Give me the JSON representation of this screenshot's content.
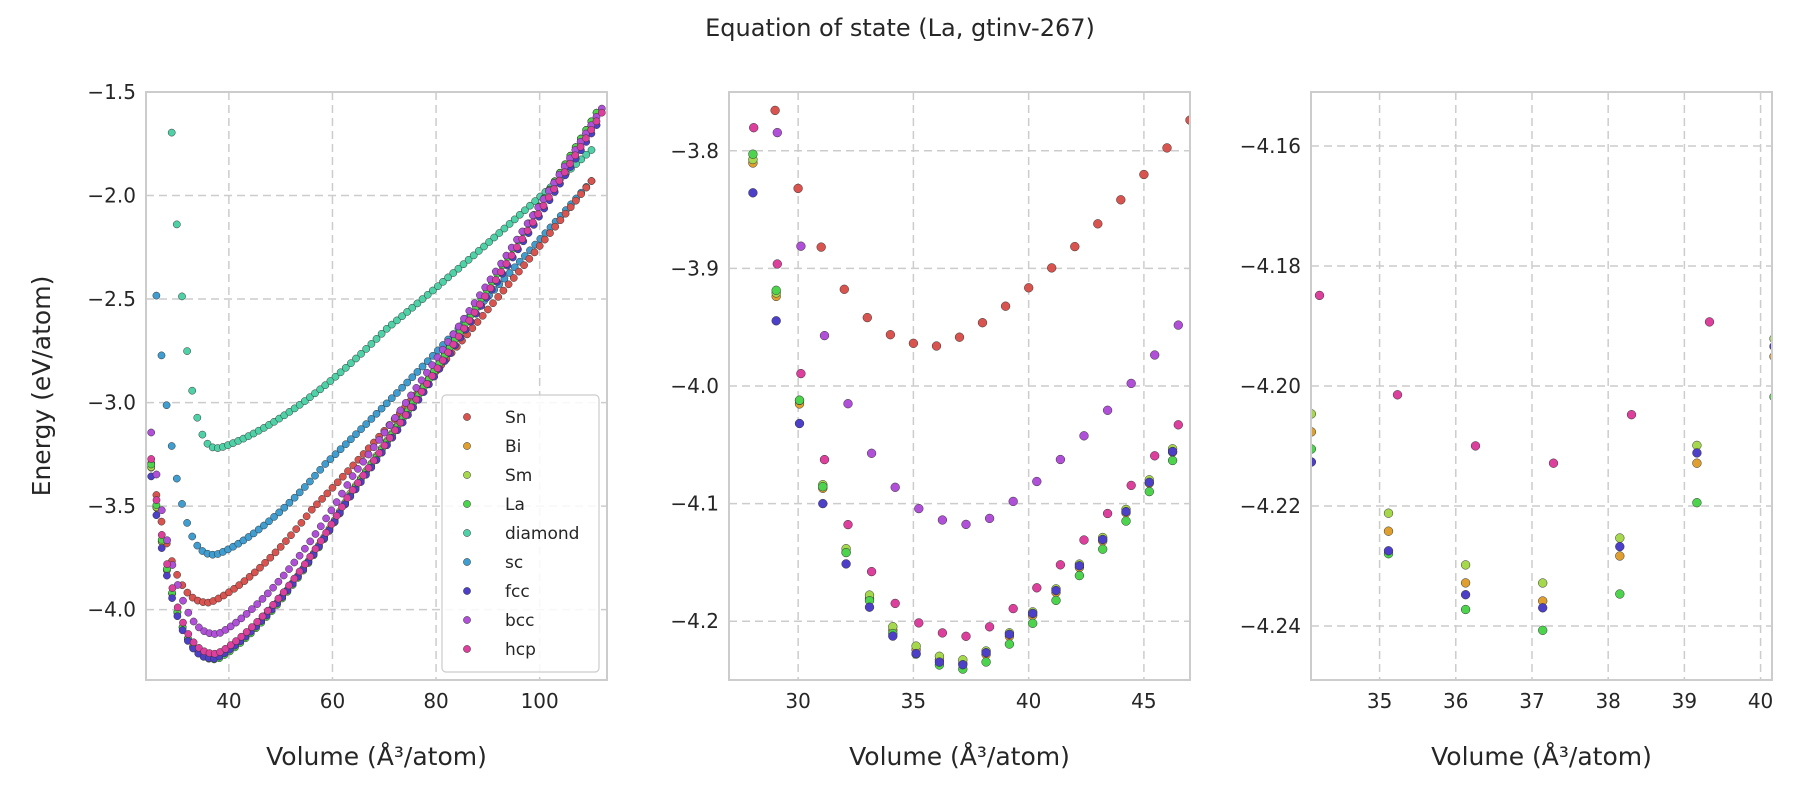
{
  "figure": {
    "title": "Equation of state (La, gtinv-267)"
  },
  "colors": {
    "Sn": "#d9534f",
    "Bi": "#e0a030",
    "Sm": "#a6d84c",
    "La": "#4cd44c",
    "diamond": "#4fd1a8",
    "sc": "#3f9dd0",
    "fcc": "#4c3fc8",
    "bcc": "#b04fd8",
    "hcp": "#dd3f9c"
  },
  "chart_data": [
    {
      "type": "scatter",
      "title": "",
      "xlabel": "Volume (Å³/atom)",
      "ylabel": "Energy (eV/atom)",
      "xlim": [
        24,
        113
      ],
      "ylim": [
        -4.34,
        -1.5
      ],
      "xticks": [
        40,
        60,
        80,
        100
      ],
      "yticks": [
        -4.0,
        -3.5,
        -3.0,
        -2.5,
        -2.0,
        -1.5
      ],
      "grid": true,
      "legend": {
        "position": "bottom-right",
        "entries": [
          "Sn",
          "Bi",
          "Sm",
          "La",
          "diamond",
          "sc",
          "fcc",
          "bcc",
          "hcp"
        ]
      },
      "series": [
        {
          "name": "Sn",
          "x_range": [
            25,
            110
          ],
          "v0": 36.2,
          "e0": -3.966,
          "curvature": 0.00115,
          "e_max": -1.93
        },
        {
          "name": "Bi",
          "x_range": [
            25,
            111
          ],
          "v0": 37.5,
          "e0": -4.236,
          "curvature": 0.00118,
          "e_max": -1.6
        },
        {
          "name": "Sm",
          "x_range": [
            25,
            111
          ],
          "v0": 37.5,
          "e0": -4.233,
          "curvature": 0.00118,
          "e_max": -1.6
        },
        {
          "name": "La",
          "x_range": [
            25,
            111
          ],
          "v0": 37.6,
          "e0": -4.241,
          "curvature": 0.00118,
          "e_max": -1.6
        },
        {
          "name": "diamond",
          "x_range": [
            26,
            110
          ],
          "v0": 38.0,
          "e0": -3.22,
          "curvature": 0.00055,
          "e_max": -1.78
        },
        {
          "name": "sc",
          "x_range": [
            26,
            110
          ],
          "v0": 37.4,
          "e0": -3.735,
          "curvature": 0.00098,
          "e_max": -1.93
        },
        {
          "name": "fcc",
          "x_range": [
            25,
            111
          ],
          "v0": 37.3,
          "e0": -4.237,
          "curvature": 0.00118,
          "e_max": -1.66
        },
        {
          "name": "bcc",
          "x_range": [
            25,
            112
          ],
          "v0": 37.8,
          "e0": -4.118,
          "curvature": 0.00112,
          "e_max": -1.58
        },
        {
          "name": "hcp",
          "x_range": [
            25,
            112
          ],
          "v0": 37.6,
          "e0": -4.213,
          "curvature": 0.00117,
          "e_max": -1.6
        }
      ]
    },
    {
      "type": "scatter",
      "title": "",
      "xlabel": "Volume (Å³/atom)",
      "ylabel": "",
      "xlim": [
        27,
        47
      ],
      "ylim": [
        -4.25,
        -3.75
      ],
      "xticks": [
        30,
        35,
        40,
        45
      ],
      "yticks": [
        -4.2,
        -4.1,
        -4.0,
        -3.9,
        -3.8
      ],
      "grid": true,
      "series": "same as first panel"
    },
    {
      "type": "scatter",
      "title": "",
      "xlabel": "Volume (Å³/atom)",
      "ylabel": "",
      "xlim": [
        34.1,
        40.15
      ],
      "ylim": [
        -4.249,
        -4.151
      ],
      "xticks": [
        35,
        36,
        37,
        38,
        39,
        40
      ],
      "yticks": [
        -4.24,
        -4.22,
        -4.2,
        -4.18,
        -4.16
      ],
      "grid": true,
      "series": "same as first panel"
    }
  ]
}
